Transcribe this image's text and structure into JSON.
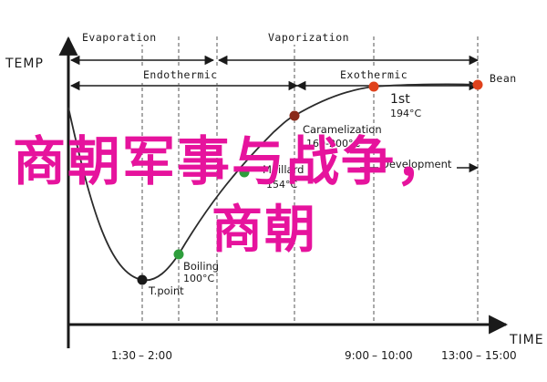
{
  "chart_data": {
    "type": "line",
    "xlabel": "TIME",
    "ylabel": "TEMP",
    "x_ticks": [
      "1:30",
      "2:00",
      "9:00",
      "10:00",
      "13:00",
      "15:00"
    ],
    "series": [
      {
        "color": "#2b2b2b",
        "points": [
          {
            "x": "0:00",
            "y": 160
          },
          {
            "x": "1:30",
            "y": 55
          },
          {
            "x": "2:00",
            "y": 100
          },
          {
            "x": "3:30",
            "y": 165
          },
          {
            "x": "5:00",
            "y": 200
          },
          {
            "x": "10:00",
            "y": 194
          },
          {
            "x": "15:00",
            "y": 194
          }
        ]
      }
    ],
    "markers": [
      {
        "name": "T.point",
        "temp": "",
        "color": "#1a1a1a"
      },
      {
        "name": "Boiling",
        "temp": "100°C",
        "color": "#2e9e3c"
      },
      {
        "name": "Maillard",
        "temp": "154°C",
        "color": "#2e9e3c"
      },
      {
        "name": "Caramelization",
        "temp": "160-200°C",
        "color": "#8a2a1a"
      },
      {
        "name": "1st",
        "temp": "194°C",
        "color": "#e0421c"
      },
      {
        "name": "Bean",
        "temp": "",
        "color": "#e0421c"
      }
    ],
    "phases": [
      {
        "label": "Evaporation",
        "from": "0:00",
        "to": "5:00"
      },
      {
        "label": "Vaporization",
        "from": "5:00",
        "to": "15:00"
      },
      {
        "label": "Endothermic",
        "from": "0:00",
        "to": "10:00"
      },
      {
        "label": "Exothermic",
        "from": "10:00",
        "to": "15:00"
      }
    ],
    "marker_rows": [
      "Development"
    ]
  },
  "overlay": {
    "line1": "商朝军事与战争，",
    "line2": "商朝",
    "color": "#e6139d"
  }
}
